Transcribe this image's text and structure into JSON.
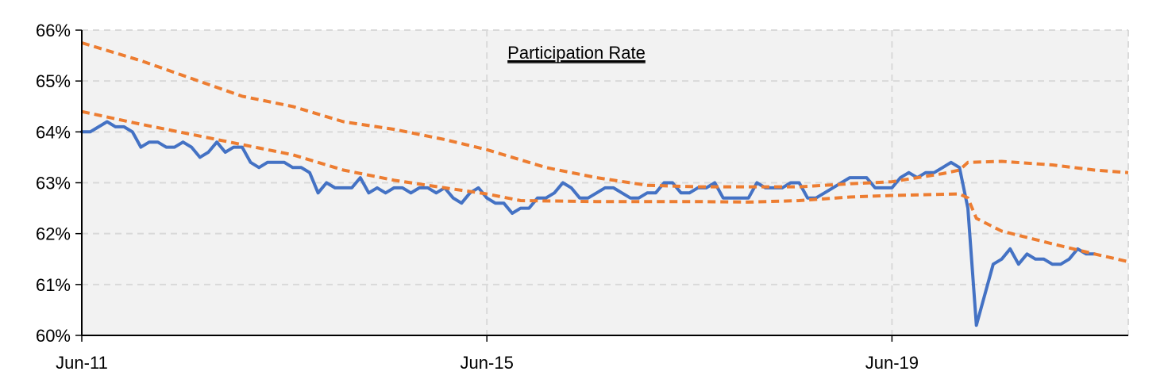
{
  "chart_data": {
    "type": "line",
    "title": "Participation Rate",
    "xlabel": "",
    "ylabel": "",
    "x_range": [
      "2011-06",
      "2021-10"
    ],
    "ylim": [
      60,
      66
    ],
    "y_ticks": [
      60,
      61,
      62,
      63,
      64,
      65,
      66
    ],
    "y_tick_labels": [
      "60%",
      "61%",
      "62%",
      "63%",
      "64%",
      "65%",
      "66%"
    ],
    "x_ticks": [
      "2011-06",
      "2015-06",
      "2019-06"
    ],
    "x_tick_labels": [
      "Jun-11",
      "Jun-15",
      "Jun-19"
    ],
    "grid": true,
    "legend": "none",
    "colors": {
      "actual": "#4472C4",
      "trend": "#ED7D31",
      "plot_bg": "#F2F2F2",
      "grid": "#D9D9D9"
    },
    "series": [
      {
        "style": "solid",
        "color": "#4472C4",
        "points": [
          [
            "2011-06",
            64.0
          ],
          [
            "2011-07",
            64.0
          ],
          [
            "2011-08",
            64.1
          ],
          [
            "2011-09",
            64.2
          ],
          [
            "2011-10",
            64.1
          ],
          [
            "2011-11",
            64.1
          ],
          [
            "2011-12",
            64.0
          ],
          [
            "2012-01",
            63.7
          ],
          [
            "2012-02",
            63.8
          ],
          [
            "2012-03",
            63.8
          ],
          [
            "2012-04",
            63.7
          ],
          [
            "2012-05",
            63.7
          ],
          [
            "2012-06",
            63.8
          ],
          [
            "2012-07",
            63.7
          ],
          [
            "2012-08",
            63.5
          ],
          [
            "2012-09",
            63.6
          ],
          [
            "2012-10",
            63.8
          ],
          [
            "2012-11",
            63.6
          ],
          [
            "2012-12",
            63.7
          ],
          [
            "2013-01",
            63.7
          ],
          [
            "2013-02",
            63.4
          ],
          [
            "2013-03",
            63.3
          ],
          [
            "2013-04",
            63.4
          ],
          [
            "2013-05",
            63.4
          ],
          [
            "2013-06",
            63.4
          ],
          [
            "2013-07",
            63.3
          ],
          [
            "2013-08",
            63.3
          ],
          [
            "2013-09",
            63.2
          ],
          [
            "2013-10",
            62.8
          ],
          [
            "2013-11",
            63.0
          ],
          [
            "2013-12",
            62.9
          ],
          [
            "2014-01",
            62.9
          ],
          [
            "2014-02",
            62.9
          ],
          [
            "2014-03",
            63.1
          ],
          [
            "2014-04",
            62.8
          ],
          [
            "2014-05",
            62.9
          ],
          [
            "2014-06",
            62.8
          ],
          [
            "2014-07",
            62.9
          ],
          [
            "2014-08",
            62.9
          ],
          [
            "2014-09",
            62.8
          ],
          [
            "2014-10",
            62.9
          ],
          [
            "2014-11",
            62.9
          ],
          [
            "2014-12",
            62.8
          ],
          [
            "2015-01",
            62.9
          ],
          [
            "2015-02",
            62.7
          ],
          [
            "2015-03",
            62.6
          ],
          [
            "2015-04",
            62.8
          ],
          [
            "2015-05",
            62.9
          ],
          [
            "2015-06",
            62.7
          ],
          [
            "2015-07",
            62.6
          ],
          [
            "2015-08",
            62.6
          ],
          [
            "2015-09",
            62.4
          ],
          [
            "2015-10",
            62.5
          ],
          [
            "2015-11",
            62.5
          ],
          [
            "2015-12",
            62.7
          ],
          [
            "2016-01",
            62.7
          ],
          [
            "2016-02",
            62.8
          ],
          [
            "2016-03",
            63.0
          ],
          [
            "2016-04",
            62.9
          ],
          [
            "2016-05",
            62.7
          ],
          [
            "2016-06",
            62.7
          ],
          [
            "2016-07",
            62.8
          ],
          [
            "2016-08",
            62.9
          ],
          [
            "2016-09",
            62.9
          ],
          [
            "2016-10",
            62.8
          ],
          [
            "2016-11",
            62.7
          ],
          [
            "2016-12",
            62.7
          ],
          [
            "2017-01",
            62.8
          ],
          [
            "2017-02",
            62.8
          ],
          [
            "2017-03",
            63.0
          ],
          [
            "2017-04",
            63.0
          ],
          [
            "2017-05",
            62.8
          ],
          [
            "2017-06",
            62.8
          ],
          [
            "2017-07",
            62.9
          ],
          [
            "2017-08",
            62.9
          ],
          [
            "2017-09",
            63.0
          ],
          [
            "2017-10",
            62.7
          ],
          [
            "2017-11",
            62.7
          ],
          [
            "2017-12",
            62.7
          ],
          [
            "2018-01",
            62.7
          ],
          [
            "2018-02",
            63.0
          ],
          [
            "2018-03",
            62.9
          ],
          [
            "2018-04",
            62.9
          ],
          [
            "2018-05",
            62.9
          ],
          [
            "2018-06",
            63.0
          ],
          [
            "2018-07",
            63.0
          ],
          [
            "2018-08",
            62.7
          ],
          [
            "2018-09",
            62.7
          ],
          [
            "2018-10",
            62.8
          ],
          [
            "2018-11",
            62.9
          ],
          [
            "2018-12",
            63.0
          ],
          [
            "2019-01",
            63.1
          ],
          [
            "2019-02",
            63.1
          ],
          [
            "2019-03",
            63.1
          ],
          [
            "2019-04",
            62.9
          ],
          [
            "2019-05",
            62.9
          ],
          [
            "2019-06",
            62.9
          ],
          [
            "2019-07",
            63.1
          ],
          [
            "2019-08",
            63.2
          ],
          [
            "2019-09",
            63.1
          ],
          [
            "2019-10",
            63.2
          ],
          [
            "2019-11",
            63.2
          ],
          [
            "2019-12",
            63.3
          ],
          [
            "2020-01",
            63.4
          ],
          [
            "2020-02",
            63.3
          ],
          [
            "2020-03",
            62.5
          ],
          [
            "2020-04",
            60.2
          ],
          [
            "2020-05",
            60.8
          ],
          [
            "2020-06",
            61.4
          ],
          [
            "2020-07",
            61.5
          ],
          [
            "2020-08",
            61.7
          ],
          [
            "2020-09",
            61.4
          ],
          [
            "2020-10",
            61.6
          ],
          [
            "2020-11",
            61.5
          ],
          [
            "2020-12",
            61.5
          ],
          [
            "2021-01",
            61.4
          ],
          [
            "2021-02",
            61.4
          ],
          [
            "2021-03",
            61.5
          ],
          [
            "2021-04",
            61.7
          ],
          [
            "2021-05",
            61.6
          ],
          [
            "2021-06",
            61.6
          ]
        ]
      },
      {
        "style": "dashed",
        "color": "#ED7D31",
        "points": [
          [
            "2011-06",
            65.75
          ],
          [
            "2012-01",
            65.4
          ],
          [
            "2012-07",
            65.05
          ],
          [
            "2013-01",
            64.7
          ],
          [
            "2013-07",
            64.5
          ],
          [
            "2014-01",
            64.2
          ],
          [
            "2014-07",
            64.05
          ],
          [
            "2015-01",
            63.85
          ],
          [
            "2015-06",
            63.65
          ],
          [
            "2016-01",
            63.3
          ],
          [
            "2016-07",
            63.1
          ],
          [
            "2017-01",
            62.95
          ],
          [
            "2017-07",
            62.92
          ],
          [
            "2018-01",
            62.92
          ],
          [
            "2018-07",
            62.92
          ],
          [
            "2019-01",
            62.98
          ],
          [
            "2019-06",
            63.02
          ],
          [
            "2019-12",
            63.18
          ],
          [
            "2020-02",
            63.25
          ],
          [
            "2020-03",
            63.4
          ],
          [
            "2020-07",
            63.42
          ],
          [
            "2021-01",
            63.35
          ],
          [
            "2021-06",
            63.25
          ],
          [
            "2021-10",
            63.2
          ]
        ]
      },
      {
        "style": "dashed",
        "color": "#ED7D31",
        "points": [
          [
            "2011-06",
            64.4
          ],
          [
            "2012-01",
            64.15
          ],
          [
            "2012-07",
            63.95
          ],
          [
            "2013-01",
            63.75
          ],
          [
            "2013-07",
            63.55
          ],
          [
            "2014-01",
            63.25
          ],
          [
            "2014-07",
            63.05
          ],
          [
            "2015-01",
            62.9
          ],
          [
            "2015-06",
            62.78
          ],
          [
            "2015-10",
            62.65
          ],
          [
            "2016-07",
            62.63
          ],
          [
            "2017-01",
            62.63
          ],
          [
            "2017-07",
            62.63
          ],
          [
            "2018-01",
            62.62
          ],
          [
            "2018-07",
            62.65
          ],
          [
            "2019-01",
            62.72
          ],
          [
            "2019-06",
            62.75
          ],
          [
            "2020-02",
            62.78
          ],
          [
            "2020-03",
            62.7
          ],
          [
            "2020-04",
            62.3
          ],
          [
            "2020-07",
            62.05
          ],
          [
            "2021-01",
            61.8
          ],
          [
            "2021-06",
            61.6
          ],
          [
            "2021-10",
            61.45
          ]
        ]
      }
    ]
  }
}
